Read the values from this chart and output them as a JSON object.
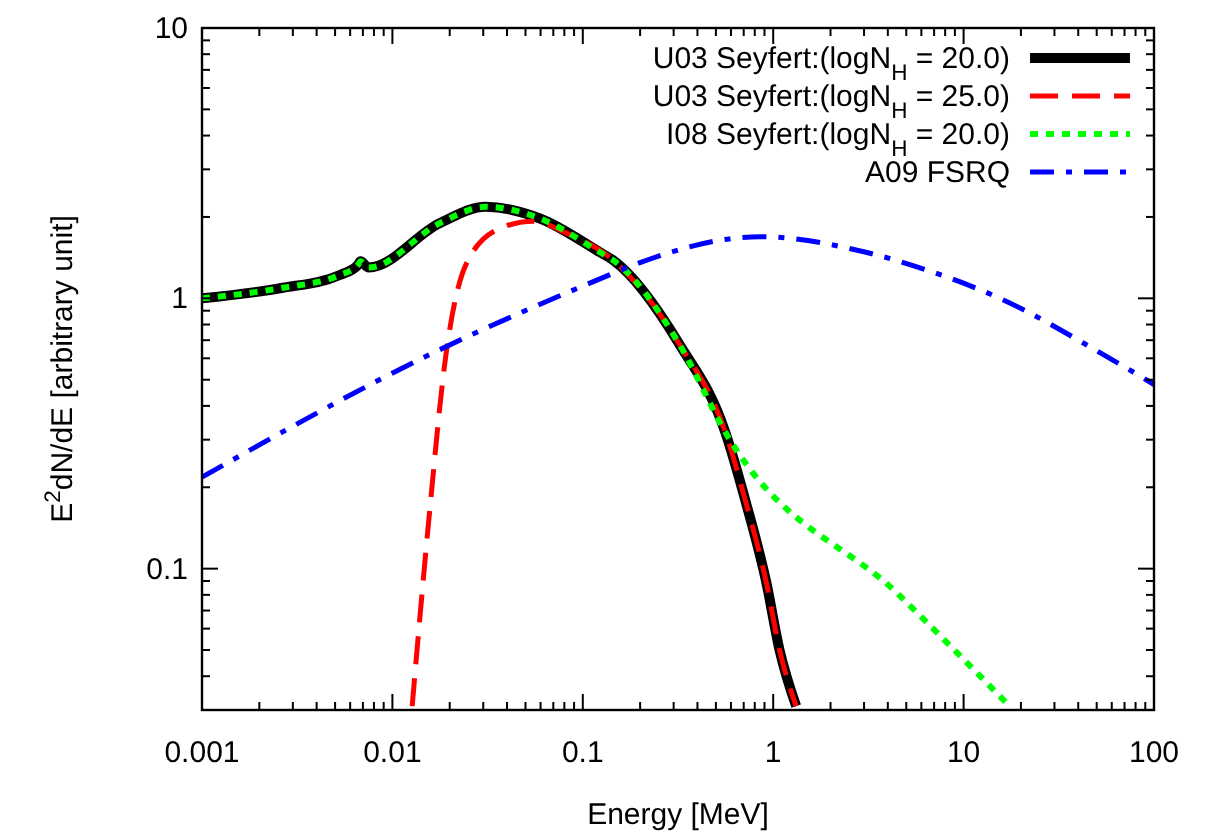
{
  "chart_data": {
    "type": "line",
    "xlabel": "Energy [MeV]",
    "ylabel": "E$^{2}$dN/dE [arbitrary unit]",
    "log": "xy",
    "grid": false,
    "legend": "top right",
    "xlim": [
      0.001,
      100
    ],
    "ylim": [
      0.03,
      10
    ],
    "xticks": [
      0.001,
      {
        "value": 0.002,
        "label": null
      },
      {
        "value": 0.003,
        "label": null
      },
      {
        "value": 0.004,
        "label": null
      },
      {
        "value": 0.005,
        "label": null
      },
      {
        "value": 0.006,
        "label": null
      },
      {
        "value": 0.007,
        "label": null
      },
      {
        "value": 0.008,
        "label": null
      },
      {
        "value": 0.009,
        "label": null
      },
      0.01,
      {
        "value": 0.02,
        "label": null
      },
      {
        "value": 0.03,
        "label": null
      },
      {
        "value": 0.04,
        "label": null
      },
      {
        "value": 0.05,
        "label": null
      },
      {
        "value": 0.06,
        "label": null
      },
      {
        "value": 0.07,
        "label": null
      },
      {
        "value": 0.08,
        "label": null
      },
      {
        "value": 0.09,
        "label": null
      },
      0.1,
      {
        "value": 0.2,
        "label": null
      },
      {
        "value": 0.3,
        "label": null
      },
      {
        "value": 0.4,
        "label": null
      },
      {
        "value": 0.5,
        "label": null
      },
      {
        "value": 0.6,
        "label": null
      },
      {
        "value": 0.7,
        "label": null
      },
      {
        "value": 0.8,
        "label": null
      },
      {
        "value": 0.9,
        "label": null
      },
      1,
      {
        "value": 2,
        "label": null
      },
      {
        "value": 3,
        "label": null
      },
      {
        "value": 4,
        "label": null
      },
      {
        "value": 5,
        "label": null
      },
      {
        "value": 6,
        "label": null
      },
      {
        "value": 7,
        "label": null
      },
      {
        "value": 8,
        "label": null
      },
      {
        "value": 9,
        "label": null
      },
      10,
      {
        "value": 20,
        "label": null
      },
      {
        "value": 30,
        "label": null
      },
      {
        "value": 40,
        "label": null
      },
      {
        "value": 50,
        "label": null
      },
      {
        "value": 60,
        "label": null
      },
      {
        "value": 70,
        "label": null
      },
      {
        "value": 80,
        "label": null
      },
      {
        "value": 90,
        "label": null
      },
      100
    ],
    "yticks": [
      {
        "value": 0.03,
        "label": null
      },
      {
        "value": 0.04,
        "label": null
      },
      {
        "value": 0.05,
        "label": null
      },
      {
        "value": 0.06,
        "label": null
      },
      {
        "value": 0.07,
        "label": null
      },
      {
        "value": 0.08,
        "label": null
      },
      {
        "value": 0.09,
        "label": null
      },
      0.1,
      {
        "value": 0.2,
        "label": null
      },
      {
        "value": 0.3,
        "label": null
      },
      {
        "value": 0.4,
        "label": null
      },
      {
        "value": 0.5,
        "label": null
      },
      {
        "value": 0.6,
        "label": null
      },
      {
        "value": 0.7,
        "label": null
      },
      {
        "value": 0.8,
        "label": null
      },
      {
        "value": 0.9,
        "label": null
      },
      1,
      {
        "value": 2,
        "label": null
      },
      {
        "value": 3,
        "label": null
      },
      {
        "value": 4,
        "label": null
      },
      {
        "value": 5,
        "label": null
      },
      {
        "value": 6,
        "label": null
      },
      {
        "value": 7,
        "label": null
      },
      {
        "value": 8,
        "label": null
      },
      {
        "value": 9,
        "label": null
      },
      10
    ],
    "series": [
      {
        "name": "U03 Seyfert:(logN$_{H}$ = 20.0)",
        "color": "#000000",
        "line_style": "solid",
        "x": [
          0.001,
          0.00257,
          0.0053,
          0.0066,
          0.0068,
          0.0075,
          0.0178,
          0.0309,
          0.06,
          0.123,
          0.145,
          0.32,
          0.56,
          0.72,
          0.92,
          1.08,
          1.32
        ],
        "values": [
          1.0,
          1.09,
          1.22,
          1.33,
          1.37,
          1.3,
          1.9,
          2.18,
          1.97,
          1.48,
          1.38,
          0.68,
          0.32,
          0.175,
          0.089,
          0.05,
          0.031
        ]
      },
      {
        "name": "U03 Seyfert:(logN$_{H}$ = 25.0)",
        "color": "#ff0000",
        "line_style": "dashed",
        "x": [
          0.0127,
          0.0157,
          0.019,
          0.0243,
          0.0365,
          0.055,
          0.081,
          0.145,
          0.32,
          0.56,
          0.72,
          0.92,
          1.08,
          1.32
        ],
        "values": [
          0.031,
          0.164,
          0.6,
          1.33,
          1.81,
          1.93,
          1.75,
          1.38,
          0.68,
          0.32,
          0.175,
          0.089,
          0.05,
          0.031
        ]
      },
      {
        "name": "I08 Seyfert:(logN$_{H}$ = 20.0)",
        "color": "#00ff00",
        "line_style": "dotted",
        "x": [
          0.001,
          0.00257,
          0.0053,
          0.0066,
          0.0068,
          0.0075,
          0.0178,
          0.0309,
          0.06,
          0.123,
          0.145,
          0.32,
          0.56,
          4.66,
          16.7
        ],
        "values": [
          1.0,
          1.09,
          1.22,
          1.33,
          1.37,
          1.3,
          1.9,
          2.18,
          1.97,
          1.48,
          1.38,
          0.68,
          0.32,
          0.079,
          0.032
        ]
      },
      {
        "name": "A09 FSRQ",
        "color": "#0000ff",
        "line_style": "dashdot",
        "x": [
          0.001,
          0.0165,
          0.123,
          0.186,
          0.85,
          3.07,
          6.9,
          15.5,
          52,
          100
        ],
        "values": [
          0.218,
          0.63,
          1.18,
          1.33,
          1.69,
          1.48,
          1.25,
          1.0,
          0.63,
          0.48
        ]
      }
    ]
  }
}
